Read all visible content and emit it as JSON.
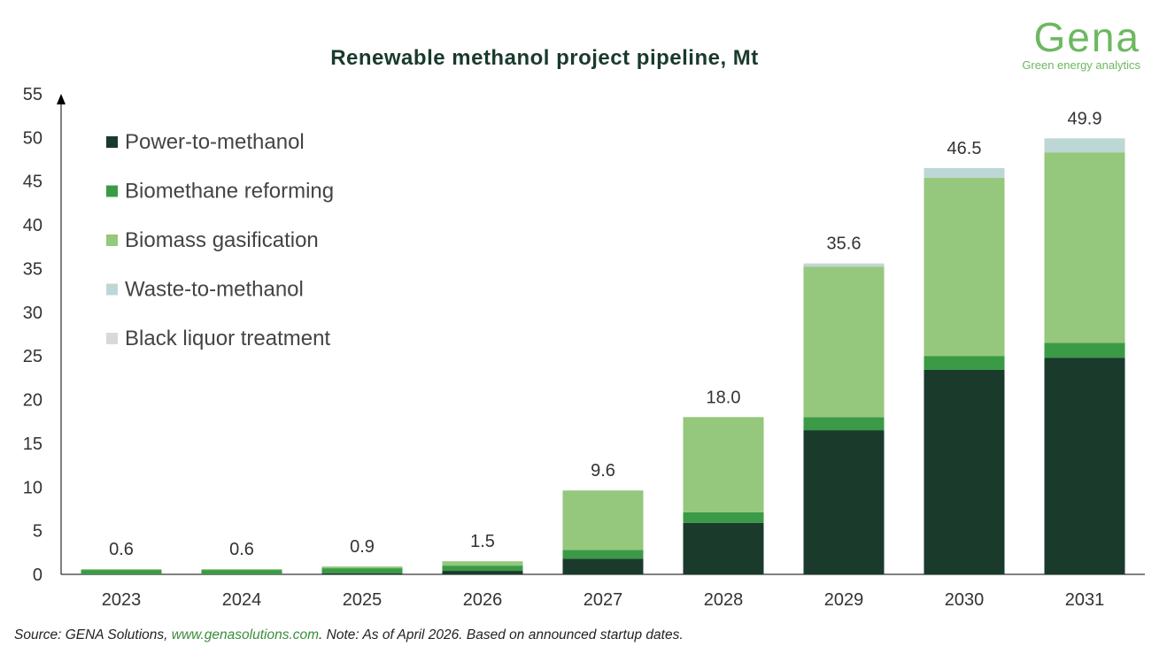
{
  "logo": {
    "name": "Gena",
    "tagline": "Green energy analytics"
  },
  "source": {
    "prefix": "Source: GENA Solutions, ",
    "link": "www.genasolutions.com",
    "suffix": ". Note: As of April 2026. Based on announced startup dates."
  },
  "chart_data": {
    "type": "bar",
    "stacked": true,
    "title": "Renewable methanol project pipeline, Mt",
    "xlabel": "",
    "ylabel": "",
    "ylim": [
      0,
      55
    ],
    "yticks": [
      0,
      5,
      10,
      15,
      20,
      25,
      30,
      35,
      40,
      45,
      50,
      55
    ],
    "grid": false,
    "legend_position": "top-left",
    "categories": [
      "2023",
      "2024",
      "2025",
      "2026",
      "2027",
      "2028",
      "2029",
      "2030",
      "2031"
    ],
    "totals": [
      "0.6",
      "0.6",
      "0.9",
      "1.5",
      "9.6",
      "18.0",
      "35.6",
      "46.5",
      "49.9"
    ],
    "series": [
      {
        "name": "Power-to-methanol",
        "color": "#1a3a2c",
        "values": [
          0.0,
          0.0,
          0.1,
          0.4,
          1.8,
          5.9,
          16.5,
          23.4,
          24.8
        ]
      },
      {
        "name": "Biomethane reforming",
        "color": "#3a9a46",
        "values": [
          0.5,
          0.5,
          0.6,
          0.6,
          1.0,
          1.2,
          1.5,
          1.6,
          1.7
        ]
      },
      {
        "name": "Biomass gasification",
        "color": "#95c77c",
        "values": [
          0.1,
          0.1,
          0.2,
          0.5,
          6.8,
          10.9,
          17.2,
          20.4,
          21.8
        ]
      },
      {
        "name": "Waste-to-methanol",
        "color": "#bdd7d6",
        "values": [
          0.0,
          0.0,
          0.0,
          0.0,
          0.0,
          0.0,
          0.3,
          1.1,
          1.6
        ]
      },
      {
        "name": "Black liquor treatment",
        "color": "#d9d9d9",
        "values": [
          0.0,
          0.0,
          0.0,
          0.0,
          0.0,
          0.0,
          0.1,
          0.0,
          0.0
        ]
      }
    ]
  }
}
